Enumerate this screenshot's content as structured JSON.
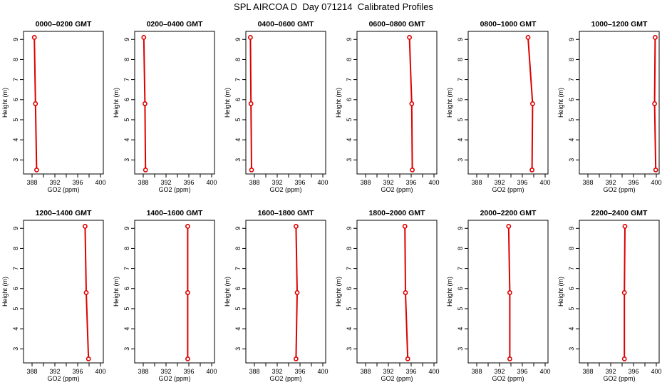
{
  "title": "SPL AIRCOA D  Day 071214  Calibrated Profiles",
  "chart_data": [
    {
      "type": "line",
      "title": "0000–0200 GMT",
      "xlabel": "GO2 (ppm)",
      "ylabel": "Height (m)",
      "xlim": [
        386.5,
        400.5
      ],
      "ylim": [
        2.3,
        9.4
      ],
      "xticks": [
        388,
        390,
        392,
        394,
        396,
        398,
        400
      ],
      "xtick_labels": [
        "388",
        "",
        "392",
        "",
        "396",
        "",
        "400"
      ],
      "yticks": [
        3,
        4,
        5,
        6,
        7,
        8,
        9
      ],
      "x": [
        388.4,
        388.6,
        388.8
      ],
      "y": [
        9.1,
        5.8,
        2.5
      ]
    },
    {
      "type": "line",
      "title": "0200–0400 GMT",
      "xlabel": "GO2 (ppm)",
      "ylabel": "Height (m)",
      "xlim": [
        386.5,
        400.5
      ],
      "ylim": [
        2.3,
        9.4
      ],
      "xticks": [
        388,
        390,
        392,
        394,
        396,
        398,
        400
      ],
      "xtick_labels": [
        "388",
        "",
        "392",
        "",
        "396",
        "",
        "400"
      ],
      "yticks": [
        3,
        4,
        5,
        6,
        7,
        8,
        9
      ],
      "x": [
        388.1,
        388.3,
        388.4
      ],
      "y": [
        9.1,
        5.8,
        2.5
      ]
    },
    {
      "type": "line",
      "title": "0400–0600 GMT",
      "xlabel": "GO2 (ppm)",
      "ylabel": "Height (m)",
      "xlim": [
        386.5,
        400.5
      ],
      "ylim": [
        2.3,
        9.4
      ],
      "xticks": [
        388,
        390,
        392,
        394,
        396,
        398,
        400
      ],
      "xtick_labels": [
        "388",
        "",
        "392",
        "",
        "396",
        "",
        "400"
      ],
      "yticks": [
        3,
        4,
        5,
        6,
        7,
        8,
        9
      ],
      "x": [
        387.3,
        387.4,
        387.5
      ],
      "y": [
        9.1,
        5.8,
        2.5
      ]
    },
    {
      "type": "line",
      "title": "0600–0800 GMT",
      "xlabel": "GO2 (ppm)",
      "ylabel": "Height (m)",
      "xlim": [
        386.5,
        400.5
      ],
      "ylim": [
        2.3,
        9.4
      ],
      "xticks": [
        388,
        390,
        392,
        394,
        396,
        398,
        400
      ],
      "xtick_labels": [
        "388",
        "",
        "392",
        "",
        "396",
        "",
        "400"
      ],
      "yticks": [
        3,
        4,
        5,
        6,
        7,
        8,
        9
      ],
      "x": [
        395.7,
        396.1,
        396.2
      ],
      "y": [
        9.1,
        5.8,
        2.5
      ]
    },
    {
      "type": "line",
      "title": "0800–1000 GMT",
      "xlabel": "GO2 (ppm)",
      "ylabel": "Height (m)",
      "xlim": [
        386.5,
        400.5
      ],
      "ylim": [
        2.3,
        9.4
      ],
      "xticks": [
        388,
        390,
        392,
        394,
        396,
        398,
        400
      ],
      "xtick_labels": [
        "388",
        "",
        "392",
        "",
        "396",
        "",
        "400"
      ],
      "yticks": [
        3,
        4,
        5,
        6,
        7,
        8,
        9
      ],
      "x": [
        397.0,
        397.8,
        397.7
      ],
      "y": [
        9.1,
        5.8,
        2.5
      ]
    },
    {
      "type": "line",
      "title": "1000–1200 GMT",
      "xlabel": "GO2 (ppm)",
      "ylabel": "Height (m)",
      "xlim": [
        386.5,
        400.5
      ],
      "ylim": [
        2.3,
        9.4
      ],
      "xticks": [
        388,
        390,
        392,
        394,
        396,
        398,
        400
      ],
      "xtick_labels": [
        "388",
        "",
        "392",
        "",
        "396",
        "",
        "400"
      ],
      "yticks": [
        3,
        4,
        5,
        6,
        7,
        8,
        9
      ],
      "x": [
        399.8,
        399.7,
        399.9
      ],
      "y": [
        9.1,
        5.8,
        2.5
      ]
    },
    {
      "type": "line",
      "title": "1200–1400 GMT",
      "xlabel": "GO2 (ppm)",
      "ylabel": "Height (m)",
      "xlim": [
        386.5,
        400.5
      ],
      "ylim": [
        2.3,
        9.4
      ],
      "xticks": [
        388,
        390,
        392,
        394,
        396,
        398,
        400
      ],
      "xtick_labels": [
        "388",
        "",
        "392",
        "",
        "396",
        "",
        "400"
      ],
      "yticks": [
        3,
        4,
        5,
        6,
        7,
        8,
        9
      ],
      "x": [
        397.3,
        397.5,
        397.9
      ],
      "y": [
        9.1,
        5.8,
        2.5
      ]
    },
    {
      "type": "line",
      "title": "1400–1600 GMT",
      "xlabel": "GO2 (ppm)",
      "ylabel": "Height (m)",
      "xlim": [
        386.5,
        400.5
      ],
      "ylim": [
        2.3,
        9.4
      ],
      "xticks": [
        388,
        390,
        392,
        394,
        396,
        398,
        400
      ],
      "xtick_labels": [
        "388",
        "",
        "392",
        "",
        "396",
        "",
        "400"
      ],
      "yticks": [
        3,
        4,
        5,
        6,
        7,
        8,
        9
      ],
      "x": [
        395.8,
        395.8,
        395.8
      ],
      "y": [
        9.1,
        5.8,
        2.5
      ]
    },
    {
      "type": "line",
      "title": "1600–1800 GMT",
      "xlabel": "GO2 (ppm)",
      "ylabel": "Height (m)",
      "xlim": [
        386.5,
        400.5
      ],
      "ylim": [
        2.3,
        9.4
      ],
      "xticks": [
        388,
        390,
        392,
        394,
        396,
        398,
        400
      ],
      "xtick_labels": [
        "388",
        "",
        "392",
        "",
        "396",
        "",
        "400"
      ],
      "yticks": [
        3,
        4,
        5,
        6,
        7,
        8,
        9
      ],
      "x": [
        395.3,
        395.5,
        395.3
      ],
      "y": [
        9.1,
        5.8,
        2.5
      ]
    },
    {
      "type": "line",
      "title": "1800–2000 GMT",
      "xlabel": "GO2 (ppm)",
      "ylabel": "Height (m)",
      "xlim": [
        386.5,
        400.5
      ],
      "ylim": [
        2.3,
        9.4
      ],
      "xticks": [
        388,
        390,
        392,
        394,
        396,
        398,
        400
      ],
      "xtick_labels": [
        "388",
        "",
        "392",
        "",
        "396",
        "",
        "400"
      ],
      "yticks": [
        3,
        4,
        5,
        6,
        7,
        8,
        9
      ],
      "x": [
        394.9,
        395.0,
        395.4
      ],
      "y": [
        9.1,
        5.8,
        2.5
      ]
    },
    {
      "type": "line",
      "title": "2000–2200 GMT",
      "xlabel": "GO2 (ppm)",
      "ylabel": "Height (m)",
      "xlim": [
        386.5,
        400.5
      ],
      "ylim": [
        2.3,
        9.4
      ],
      "xticks": [
        388,
        390,
        392,
        394,
        396,
        398,
        400
      ],
      "xtick_labels": [
        "388",
        "",
        "392",
        "",
        "396",
        "",
        "400"
      ],
      "yticks": [
        3,
        4,
        5,
        6,
        7,
        8,
        9
      ],
      "x": [
        393.6,
        393.8,
        393.8
      ],
      "y": [
        9.1,
        5.8,
        2.5
      ]
    },
    {
      "type": "line",
      "title": "2200–2400 GMT",
      "xlabel": "GO2 (ppm)",
      "ylabel": "Height (m)",
      "xlim": [
        386.5,
        400.5
      ],
      "ylim": [
        2.3,
        9.4
      ],
      "xticks": [
        388,
        390,
        392,
        394,
        396,
        398,
        400
      ],
      "xtick_labels": [
        "388",
        "",
        "392",
        "",
        "396",
        "",
        "400"
      ],
      "yticks": [
        3,
        4,
        5,
        6,
        7,
        8,
        9
      ],
      "x": [
        394.5,
        394.4,
        394.4
      ],
      "y": [
        9.1,
        5.8,
        2.5
      ]
    }
  ],
  "colors": {
    "series": "#dd0000",
    "axis": "#000000"
  }
}
